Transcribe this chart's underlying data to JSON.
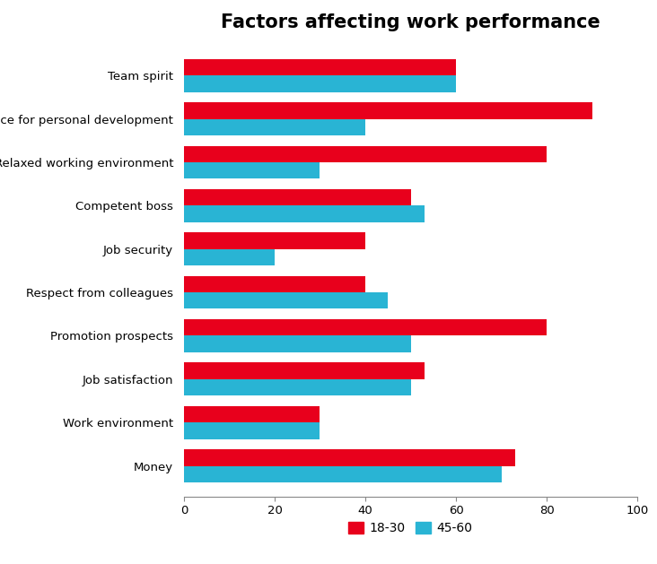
{
  "title": "Factors affecting work performance",
  "categories": [
    "Money",
    "Work environment",
    "Job satisfaction",
    "Promotion prospects",
    "Respect from colleagues",
    "Job security",
    "Competent boss",
    "Relaxed working environment",
    "Chance for personal development",
    "Team spirit"
  ],
  "series": {
    "18-30": [
      73,
      30,
      53,
      80,
      40,
      40,
      50,
      80,
      90,
      60
    ],
    "45-60": [
      70,
      30,
      50,
      50,
      45,
      20,
      53,
      30,
      40,
      60
    ]
  },
  "colors": {
    "18-30": "#e8001c",
    "45-60": "#29b4d4"
  },
  "xlim": [
    0,
    100
  ],
  "xticks": [
    0,
    20,
    40,
    60,
    80,
    100
  ],
  "title_fontsize": 15,
  "tick_fontsize": 9.5,
  "legend_fontsize": 10,
  "bar_height": 0.38,
  "background_color": "#ffffff"
}
